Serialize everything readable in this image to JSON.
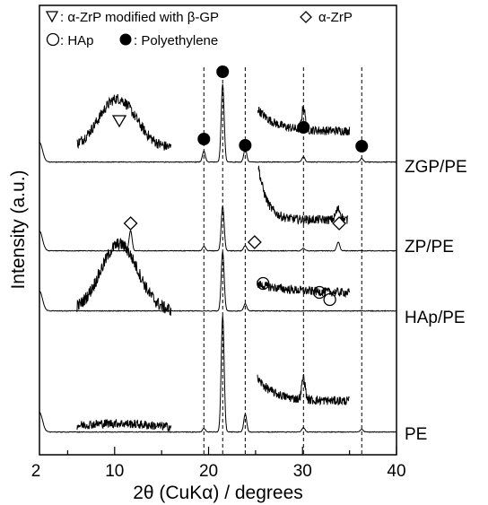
{
  "chart_data": {
    "type": "line",
    "xlabel": "2θ (CuKα) / degrees",
    "ylabel": "Intensity (a.u.)",
    "xlim": [
      2,
      40
    ],
    "x_ticks": [
      "2",
      "10",
      "20",
      "30",
      "40"
    ],
    "legend": [
      {
        "symbol": "triangle-open",
        "label": ": α-ZrP modified with β-GP"
      },
      {
        "symbol": "diamond-open",
        "label": "α-ZrP"
      },
      {
        "symbol": "circle-open",
        "label": ": HAp"
      },
      {
        "symbol": "circle-filled",
        "label": ": Polyethylene"
      }
    ],
    "reference_lines": [
      19.5,
      21.5,
      23.9,
      30.1,
      36.3
    ],
    "series": [
      {
        "name": "ZGP/PE",
        "baseline": 0,
        "peaks": [
          [
            19.5,
            0.12
          ],
          [
            21.5,
            0.87
          ],
          [
            23.9,
            0.15
          ],
          [
            30.1,
            0.06
          ],
          [
            36.3,
            0.04
          ]
        ],
        "inset": {
          "from": 6,
          "to": 16,
          "center": 10.3,
          "amp": 0.55,
          "width": 2.8,
          "base": 0.16,
          "noise": 0.06
        }
      },
      {
        "name": "ZP/PE",
        "baseline": 1,
        "peaks": [
          [
            11.7,
            0.23
          ],
          [
            19.5,
            0.05
          ],
          [
            21.5,
            0.5
          ],
          [
            23.9,
            0.06
          ],
          [
            30.1,
            0.03
          ],
          [
            33.8,
            0.1
          ]
        ],
        "inset": {
          "from": 25.3,
          "to": 34.8,
          "decay": true,
          "noise": 0.05
        }
      },
      {
        "name": "HAp/PE",
        "baseline": 2,
        "peaks": [
          [
            21.5,
            0.66
          ],
          [
            23.9,
            0.08
          ]
        ],
        "inset": {
          "from": 6,
          "to": 16,
          "center": 10.5,
          "amp": 0.75,
          "width": 2.8,
          "base": 0.0,
          "noise": 0.07
        }
      },
      {
        "name": "PE",
        "baseline": 3,
        "peaks": [
          [
            19.5,
            0.04
          ],
          [
            21.5,
            1.3
          ],
          [
            23.9,
            0.2
          ],
          [
            30.1,
            0.05
          ],
          [
            36.3,
            0.03
          ]
        ],
        "inset": {
          "from": 6,
          "to": 16,
          "center": 10,
          "amp": 0.05,
          "width": 5,
          "base": 0.05,
          "noise": 0.05
        }
      }
    ],
    "markers": [
      {
        "symbol": "triangle-open",
        "x": 10.5,
        "series": "ZGP/PE"
      },
      {
        "symbol": "circle-filled",
        "x": 19.5,
        "series": "ZGP/PE"
      },
      {
        "symbol": "circle-filled",
        "x": 21.5,
        "series": "ZGP/PE"
      },
      {
        "symbol": "circle-filled",
        "x": 23.9,
        "series": "ZGP/PE"
      },
      {
        "symbol": "circle-filled",
        "x": 30.1,
        "series": "ZGP/PE"
      },
      {
        "symbol": "circle-filled",
        "x": 36.3,
        "series": "ZGP/PE"
      },
      {
        "symbol": "diamond-open",
        "x": 11.7,
        "series": "ZP/PE"
      },
      {
        "symbol": "diamond-open",
        "x": 24.9,
        "series": "ZP/PE"
      },
      {
        "symbol": "diamond-open",
        "x": 33.9,
        "series": "ZP/PE"
      },
      {
        "symbol": "circle-open",
        "x": 25.8,
        "series": "HAp/PE"
      },
      {
        "symbol": "circle-open",
        "x": 31.8,
        "series": "HAp/PE"
      },
      {
        "symbol": "circle-open",
        "x": 32.9,
        "series": "HAp/PE"
      }
    ]
  }
}
